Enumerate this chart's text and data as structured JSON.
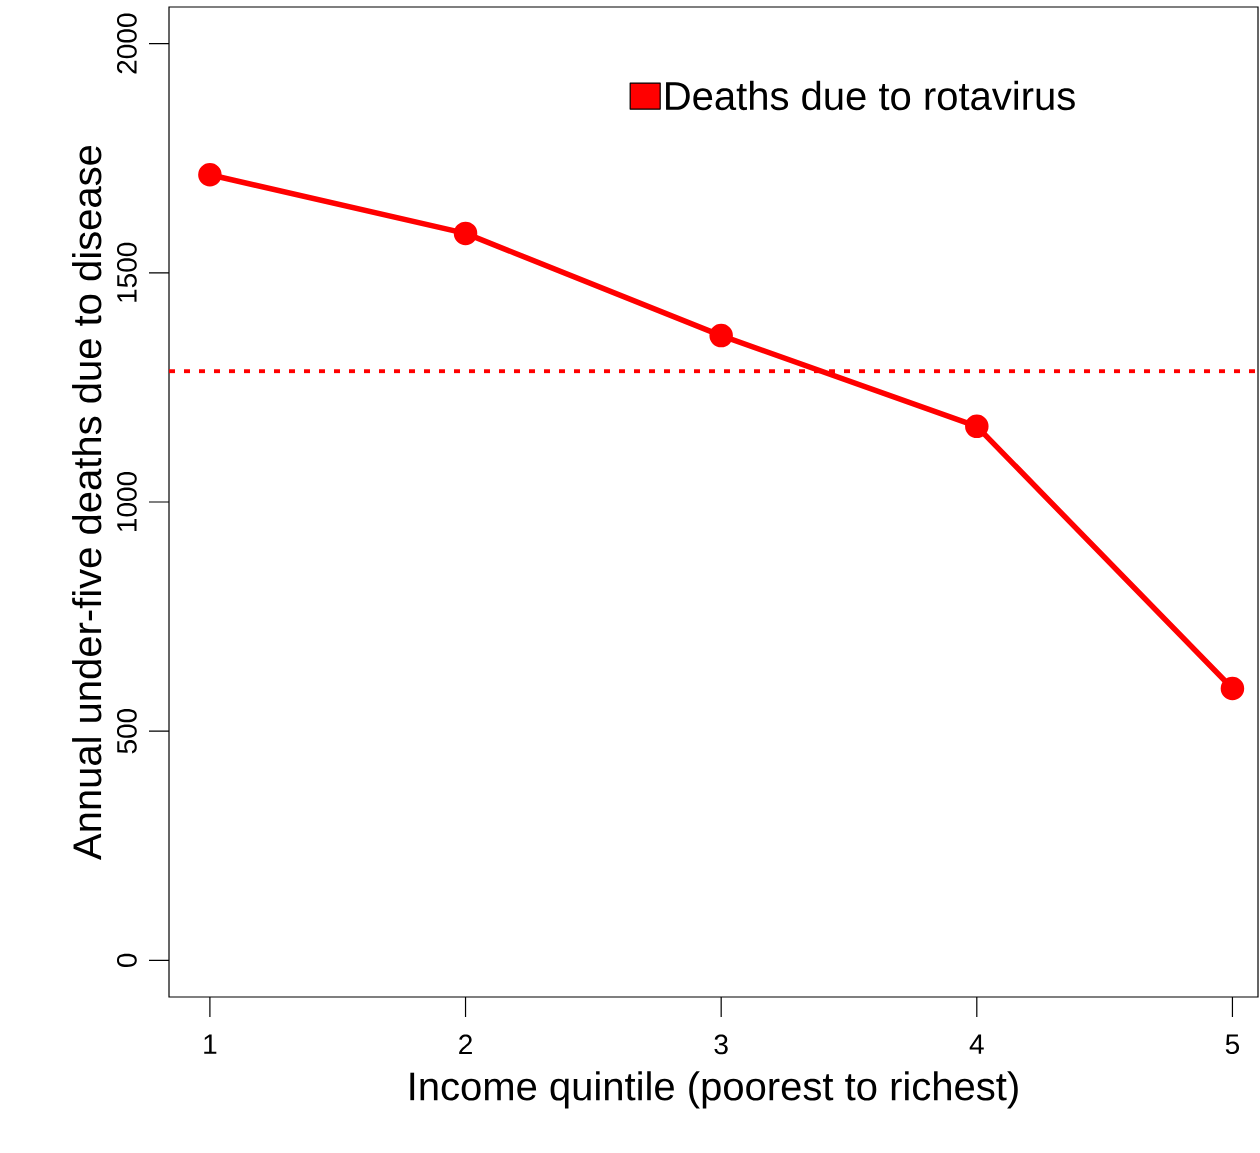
{
  "chart_data": {
    "type": "line",
    "xlabel": "Income quintile (poorest to richest)",
    "ylabel": "Annual under-five deaths due to disease",
    "x": [
      1,
      2,
      3,
      4,
      5
    ],
    "series": [
      {
        "name": "Deaths due to rotavirus",
        "color": "#ff0000",
        "values": [
          1714,
          1586,
          1363,
          1165,
          593
        ]
      }
    ],
    "xlim": [
      0.84,
      5.1
    ],
    "ylim": [
      -80,
      2080
    ],
    "xticks": [
      1,
      2,
      3,
      4,
      5
    ],
    "yticks": [
      0,
      500,
      1000,
      1500,
      2000
    ],
    "ref_lines": [
      {
        "axis": "y",
        "value": 1285,
        "color": "#ff0000",
        "line_style": "dotted"
      }
    ],
    "marker": "circle",
    "line_style": "solid",
    "grid": false,
    "legend": "top right"
  }
}
